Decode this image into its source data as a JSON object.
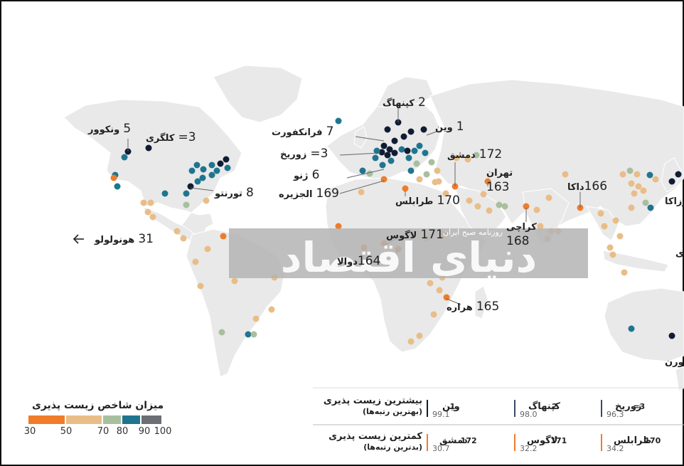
{
  "colors": {
    "ocean": "#ffffff",
    "land": "#e8e8e8",
    "band_30_50": "#f07c2a",
    "band_50_70": "#e9bd87",
    "band_70_80": "#a8bf9e",
    "band_80_90": "#1f7590",
    "band_90_100": "#101c33",
    "watermark": "#b4b4b4"
  },
  "labels": {
    "copenhagen": {
      "rank": "2",
      "name": "کپنهاگ"
    },
    "vienna": {
      "rank": "1",
      "name": "وین"
    },
    "frankfurt": {
      "rank": "7",
      "name": "فرانکفورت"
    },
    "zurich": {
      "rank": "3=",
      "name": "زوریخ"
    },
    "geneva": {
      "rank": "6",
      "name": "ژنو"
    },
    "algiers": {
      "rank": "169",
      "name": "الجزیره"
    },
    "tripoli": {
      "rank": "170",
      "name": "طرابلس"
    },
    "damascus": {
      "rank": "172",
      "name": "دمشق"
    },
    "tehran": {
      "rank": "163",
      "name": "تهران"
    },
    "karachi": {
      "rank": "168",
      "name": "کراچی"
    },
    "dhaka": {
      "rank": "166",
      "name": "داکا"
    },
    "lagos": {
      "rank": "171",
      "name": "لاگوس"
    },
    "douala": {
      "rank": "164",
      "name": "دوالا"
    },
    "harare": {
      "rank": "165",
      "name": "هراره"
    },
    "vancouver": {
      "rank": "5",
      "name": "ونکوور"
    },
    "calgary": {
      "rank": "3=",
      "name": "کلگری"
    },
    "toronto": {
      "rank": "8",
      "name": "تورنتو"
    },
    "honolulu": {
      "rank": "31",
      "name": "هونولولو"
    },
    "osaka_partial": {
      "name": "وزاکا"
    },
    "melbourne_partial": {
      "name": "ورن"
    },
    "partial_right": {
      "name": "ی"
    }
  },
  "legend": {
    "title": "میزان شاخص زیست پذیری",
    "ticks": [
      "30",
      "50",
      "70",
      "80",
      "90",
      "100"
    ]
  },
  "table": {
    "best_header": "بیشترین زیست پذیری",
    "best_sub": "(بهترین رتبه‌ها)",
    "worst_header": "کمترین زیست پذیری",
    "worst_sub": "(بدترین رتبه‌ها)",
    "best": [
      {
        "rank": "1",
        "name": "وین",
        "score": "99.1"
      },
      {
        "rank": "2",
        "name": "کپنهاگ",
        "score": "98.0"
      },
      {
        "rank": "3=",
        "name": "زوریخ",
        "score": "96.3"
      }
    ],
    "worst": [
      {
        "rank": "172",
        "name": "دمشق",
        "score": "30.7"
      },
      {
        "rank": "171",
        "name": "لاگوس",
        "score": "32.2"
      },
      {
        "rank": "170",
        "name": "طرابلس",
        "score": "34.2"
      }
    ]
  },
  "watermark": {
    "brand": "دنیای اقتصاد",
    "sub": "روزنامه صبح ایران"
  }
}
